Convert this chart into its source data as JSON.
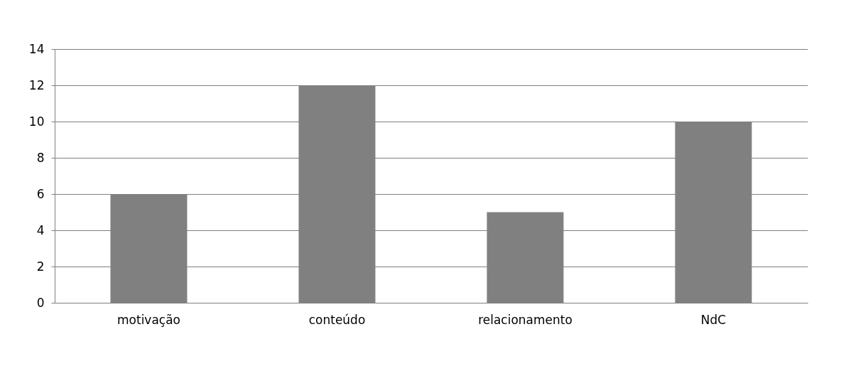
{
  "chart_data": {
    "type": "bar",
    "categories": [
      "motivação",
      "conteúdo",
      "relacionamento",
      "NdC"
    ],
    "values": [
      6,
      12,
      5,
      10
    ],
    "color": "#808080",
    "ylim": [
      0,
      14
    ],
    "yticks": [
      0,
      2,
      4,
      6,
      8,
      10,
      12,
      14
    ],
    "grid": "y"
  }
}
